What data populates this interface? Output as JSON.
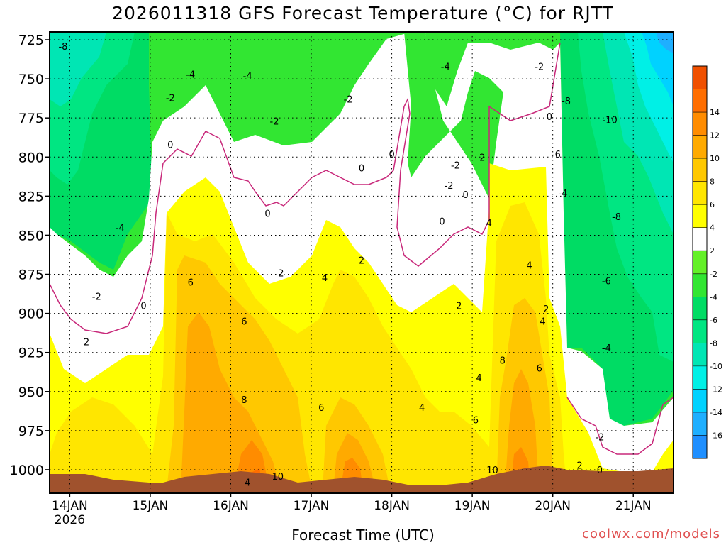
{
  "title": "2026011318 GFS Forecast Temperature (°C) for RJTT",
  "xlabel": "Forecast Time (UTC)",
  "credit": "coolwx.com/models",
  "chart_data": {
    "type": "heatmap",
    "subtype": "time-height contour (filled)",
    "title": "2026011318 GFS Forecast Temperature (°C) for RJTT",
    "xlabel": "Forecast Time (UTC)",
    "ylabel": "",
    "y_axis": {
      "units": "hPa",
      "reversed": true,
      "range": [
        1015,
        720
      ],
      "ticks": [
        725,
        750,
        775,
        800,
        825,
        850,
        875,
        900,
        925,
        950,
        975,
        1000
      ]
    },
    "x_axis": {
      "range": [
        "2026-01-13T18:00Z",
        "2026-01-21T12:00Z"
      ],
      "ticks": [
        {
          "time": "2026-01-14T00:00Z",
          "label": "14JAN",
          "sublabel": "2026"
        },
        {
          "time": "2026-01-15T00:00Z",
          "label": "15JAN"
        },
        {
          "time": "2026-01-16T00:00Z",
          "label": "16JAN"
        },
        {
          "time": "2026-01-17T00:00Z",
          "label": "17JAN"
        },
        {
          "time": "2026-01-18T00:00Z",
          "label": "18JAN"
        },
        {
          "time": "2026-01-19T00:00Z",
          "label": "19JAN"
        },
        {
          "time": "2026-01-20T00:00Z",
          "label": "20JAN"
        },
        {
          "time": "2026-01-21T00:00Z",
          "label": "21JAN"
        }
      ]
    },
    "grid": true,
    "colorbar": {
      "placement": "right",
      "levels": [
        -18,
        -16,
        -14,
        -12,
        -10,
        -8,
        -6,
        -4,
        -2,
        2,
        4,
        6,
        8,
        10,
        12,
        14,
        16
      ],
      "labels": [
        "-16",
        "-14",
        "-12",
        "-10",
        "-8",
        "-6",
        "-4",
        "-2",
        "2",
        "4",
        "6",
        "8",
        "10",
        "12",
        "14"
      ],
      "colors": [
        "#1f8fff",
        "#1fafff",
        "#00d2ff",
        "#00f0e6",
        "#00e6b4",
        "#00e682",
        "#00dc64",
        "#32e632",
        "#64f028",
        "#ffffff",
        "#ffff00",
        "#ffe600",
        "#ffc800",
        "#ffaa00",
        "#ff8c00",
        "#ff6e00",
        "#f05000"
      ]
    },
    "freezing_contour_color": "#c8287a",
    "ground_color": "#a0522d",
    "contour_labels": [
      {
        "time": "2026-01-13T22:00Z",
        "p": 729,
        "value": -8
      },
      {
        "time": "2026-01-14T15:00Z",
        "p": 845,
        "value": -4
      },
      {
        "time": "2026-01-14T08:00Z",
        "p": 889,
        "value": -2
      },
      {
        "time": "2026-01-14T22:00Z",
        "p": 895,
        "value": 0
      },
      {
        "time": "2026-01-14T05:00Z",
        "p": 918,
        "value": 2
      },
      {
        "time": "2026-01-15T12:00Z",
        "p": 747,
        "value": -4
      },
      {
        "time": "2026-01-15T06:00Z",
        "p": 762,
        "value": -2
      },
      {
        "time": "2026-01-15T06:00Z",
        "p": 792,
        "value": 0
      },
      {
        "time": "2026-01-15T12:00Z",
        "p": 880,
        "value": 6
      },
      {
        "time": "2026-01-16T05:00Z",
        "p": 1008,
        "value": 4
      },
      {
        "time": "2026-01-16T14:00Z",
        "p": 1004,
        "value": 10
      },
      {
        "time": "2026-01-16T05:00Z",
        "p": 748,
        "value": -4
      },
      {
        "time": "2026-01-16T13:00Z",
        "p": 777,
        "value": -2
      },
      {
        "time": "2026-01-16T11:00Z",
        "p": 836,
        "value": 0
      },
      {
        "time": "2026-01-16T15:00Z",
        "p": 874,
        "value": 2
      },
      {
        "time": "2026-01-16T04:00Z",
        "p": 905,
        "value": 6
      },
      {
        "time": "2026-01-16T04:00Z",
        "p": 955,
        "value": 8
      },
      {
        "time": "2026-01-17T11:00Z",
        "p": 763,
        "value": -2
      },
      {
        "time": "2026-01-17T15:00Z",
        "p": 807,
        "value": 0
      },
      {
        "time": "2026-01-17T15:00Z",
        "p": 866,
        "value": 2
      },
      {
        "time": "2026-01-17T04:00Z",
        "p": 877,
        "value": 4
      },
      {
        "time": "2026-01-17T03:00Z",
        "p": 960,
        "value": 6
      },
      {
        "time": "2026-01-18T00:00Z",
        "p": 798,
        "value": 0
      },
      {
        "time": "2026-01-18T16:00Z",
        "p": 742,
        "value": -4
      },
      {
        "time": "2026-01-18T15:00Z",
        "p": 841,
        "value": 0
      },
      {
        "time": "2026-01-18T19:00Z",
        "p": 805,
        "value": -2
      },
      {
        "time": "2026-01-18T17:00Z",
        "p": 818,
        "value": -2
      },
      {
        "time": "2026-01-18T22:00Z",
        "p": 824,
        "value": 0
      },
      {
        "time": "2026-01-18T20:00Z",
        "p": 895,
        "value": 2
      },
      {
        "time": "2026-01-19T03:00Z",
        "p": 800,
        "value": 2
      },
      {
        "time": "2026-01-19T05:00Z",
        "p": 842,
        "value": 4
      },
      {
        "time": "2026-01-18T09:00Z",
        "p": 960,
        "value": 4
      },
      {
        "time": "2026-01-19T02:00Z",
        "p": 941,
        "value": 4
      },
      {
        "time": "2026-01-19T01:00Z",
        "p": 968,
        "value": 6
      },
      {
        "time": "2026-01-19T09:00Z",
        "p": 930,
        "value": 8
      },
      {
        "time": "2026-01-19T06:00Z",
        "p": 1000,
        "value": 10
      },
      {
        "time": "2026-01-19T17:00Z",
        "p": 869,
        "value": 4
      },
      {
        "time": "2026-01-19T22:00Z",
        "p": 897,
        "value": 2
      },
      {
        "time": "2026-01-19T21:00Z",
        "p": 905,
        "value": 4
      },
      {
        "time": "2026-01-19T20:00Z",
        "p": 935,
        "value": 6
      },
      {
        "time": "2026-01-19T20:00Z",
        "p": 742,
        "value": -2
      },
      {
        "time": "2026-01-20T01:00Z",
        "p": 798,
        "value": -6
      },
      {
        "time": "2026-01-20T03:00Z",
        "p": 823,
        "value": -4
      },
      {
        "time": "2026-01-20T04:00Z",
        "p": 764,
        "value": -8
      },
      {
        "time": "2026-01-19T23:00Z",
        "p": 774,
        "value": 0
      },
      {
        "time": "2026-01-20T17:00Z",
        "p": 776,
        "value": -10
      },
      {
        "time": "2026-01-20T19:00Z",
        "p": 838,
        "value": -8
      },
      {
        "time": "2026-01-20T16:00Z",
        "p": 879,
        "value": -6
      },
      {
        "time": "2026-01-20T16:00Z",
        "p": 922,
        "value": -4
      },
      {
        "time": "2026-01-20T14:00Z",
        "p": 979,
        "value": -2
      },
      {
        "time": "2026-01-20T14:00Z",
        "p": 1000,
        "value": 0
      },
      {
        "time": "2026-01-20T08:00Z",
        "p": 997,
        "value": 2
      }
    ],
    "notes_visible": "Surface temperature bands (ground shaded) along bottom; freezing line drawn in magenta"
  }
}
